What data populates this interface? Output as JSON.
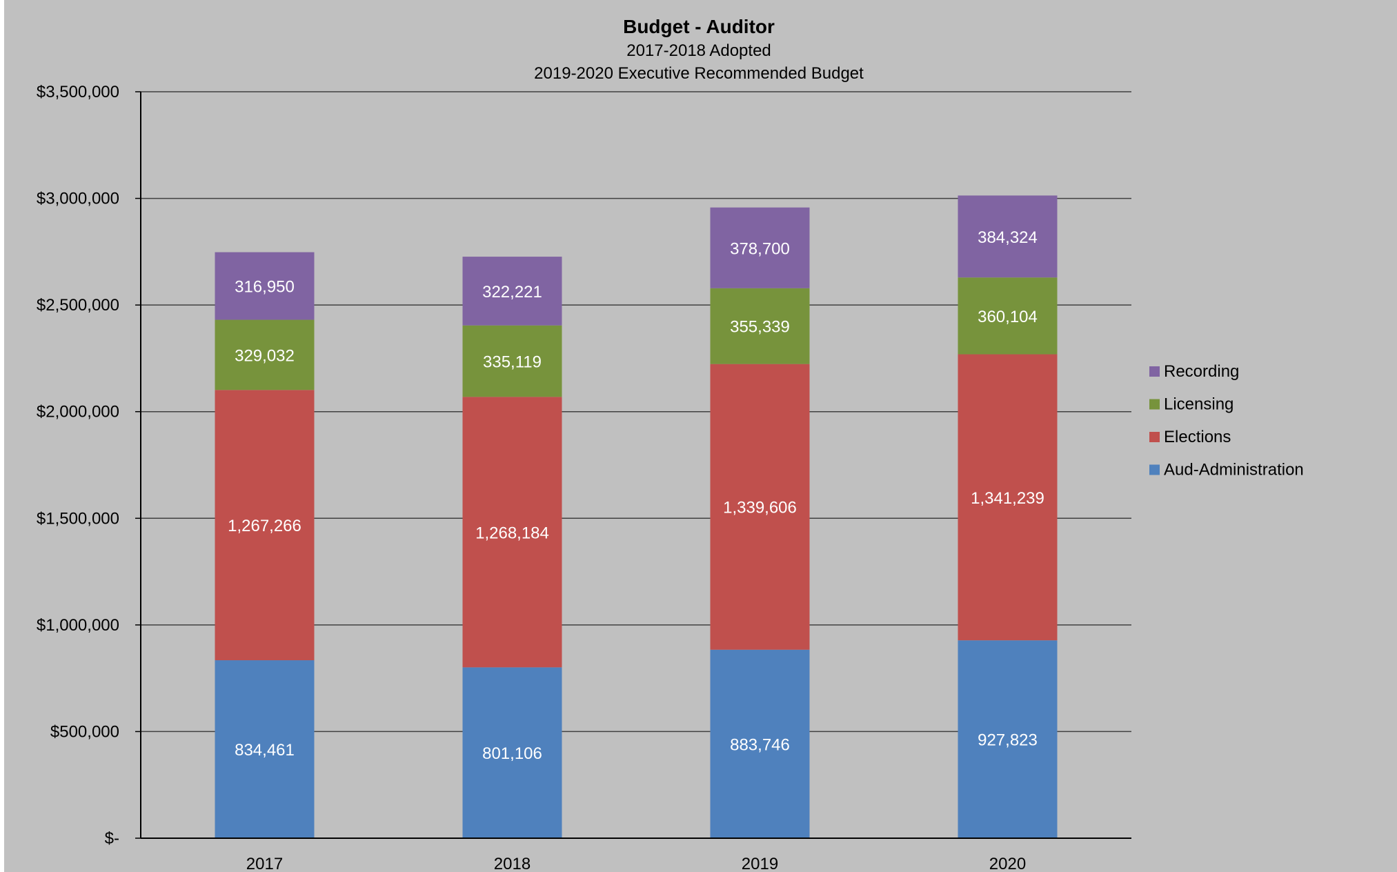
{
  "chart_data": {
    "type": "bar",
    "stacked": true,
    "title": "Budget - Auditor",
    "subtitle_lines": [
      "2017-2018 Adopted",
      "2019-2020 Executive Recommended Budget"
    ],
    "categories": [
      "2017",
      "2018",
      "2019",
      "2020"
    ],
    "series": [
      {
        "name": "Aud-Administration",
        "color": "#4f81bd",
        "values": [
          834461,
          801106,
          883746,
          927823
        ],
        "labels": [
          "834,461",
          "801,106",
          "883,746",
          "927,823"
        ]
      },
      {
        "name": "Elections",
        "color": "#c0504d",
        "values": [
          1267266,
          1268184,
          1339606,
          1341239
        ],
        "labels": [
          "1,267,266",
          "1,268,184",
          "1,339,606",
          "1,341,239"
        ]
      },
      {
        "name": "Licensing",
        "color": "#77933c",
        "values": [
          329032,
          335119,
          355339,
          360104
        ],
        "labels": [
          "329,032",
          "335,119",
          "355,339",
          "360,104"
        ]
      },
      {
        "name": "Recording",
        "color": "#8064a2",
        "values": [
          316950,
          322221,
          378700,
          384324
        ],
        "labels": [
          "316,950",
          "322,221",
          "378,700",
          "384,324"
        ]
      }
    ],
    "ylim": [
      0,
      3500000
    ],
    "y_ticks": [
      0,
      500000,
      1000000,
      1500000,
      2000000,
      2500000,
      3000000,
      3500000
    ],
    "y_tick_labels": [
      "$-",
      "$500,000",
      "$1,000,000",
      "$1,500,000",
      "$2,000,000",
      "$2,500,000",
      "$3,000,000",
      "$3,500,000"
    ],
    "xlabel": "",
    "ylabel": "",
    "grid": true,
    "legend_position": "right",
    "legend_order": [
      "Recording",
      "Licensing",
      "Elections",
      "Aud-Administration"
    ]
  },
  "colors": {
    "background": "#c0c0c0",
    "gridline": "#404040",
    "axis": "#000000",
    "data_label": "#ffffff"
  }
}
